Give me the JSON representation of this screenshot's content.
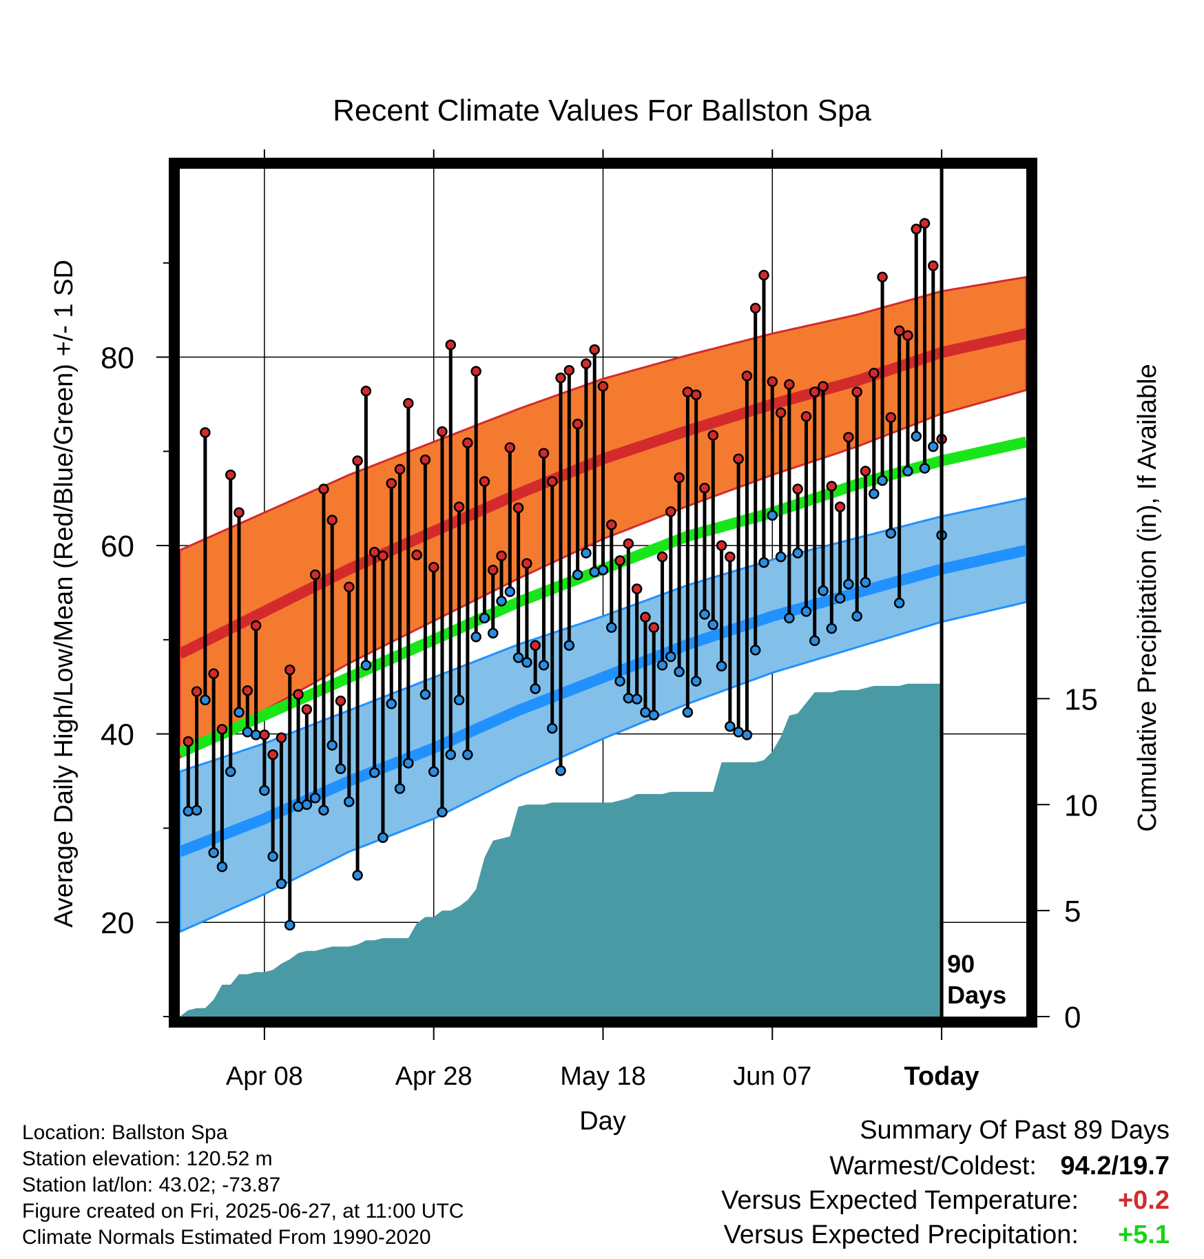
{
  "chart_data": {
    "type": "line",
    "title": "Recent Climate Values For Ballston Spa",
    "xlabel": "Day",
    "ylabel": "Average Daily High/Low/Mean (Red/Blue/Green) +/- 1 SD",
    "y2label": "Cumulative Precipitation (in), If Available",
    "x_range_days": [
      -90,
      10
    ],
    "ylim": [
      10,
      100
    ],
    "y_ticks": [
      "20",
      "40",
      "60",
      "80"
    ],
    "y2lim": [
      0,
      40
    ],
    "y2_ticks": [
      "0",
      "5",
      "10",
      "15"
    ],
    "x_tick_days": [
      -80,
      -60,
      -40,
      -20,
      0
    ],
    "x_tick_labels": [
      "Apr 08",
      "Apr 28",
      "May 18",
      "Jun 07",
      "Today"
    ],
    "today_marker": "90\nDays",
    "series_colors": {
      "high_band": "#f47a30",
      "high_mean": "#d32b2b",
      "low_band": "#82c0ea",
      "low_mean": "#2191ff",
      "mean": "#19e619",
      "precip": "#4a9aa5",
      "high_dot": "#d32b2b",
      "low_dot": "#2b8de0"
    },
    "normals": {
      "days": [
        -90,
        -80,
        -70,
        -60,
        -50,
        -40,
        -30,
        -20,
        -10,
        0,
        10
      ],
      "high_mean": [
        48.5,
        53.0,
        57.5,
        61.5,
        65.5,
        69.2,
        72.2,
        75.0,
        77.5,
        80.5,
        82.5
      ],
      "high_sd": [
        11.0,
        10.5,
        10.0,
        9.5,
        9.0,
        8.5,
        8.0,
        7.5,
        7.0,
        6.5,
        6.0
      ],
      "low_mean": [
        27.5,
        31.0,
        35.0,
        38.5,
        42.5,
        46.0,
        49.5,
        52.5,
        55.0,
        57.5,
        59.5
      ],
      "low_sd": [
        8.5,
        8.0,
        7.5,
        7.5,
        7.0,
        6.5,
        6.3,
        6.0,
        5.8,
        5.6,
        5.5
      ],
      "mean": [
        38.0,
        42.0,
        46.0,
        50.0,
        54.0,
        57.5,
        61.0,
        63.5,
        66.5,
        69.0,
        71.0
      ]
    },
    "observed": {
      "start_day": -89,
      "high": [
        39.2,
        44.5,
        72.0,
        46.4,
        40.5,
        67.5,
        63.5,
        44.6,
        51.5,
        39.9,
        37.8,
        39.6,
        46.8,
        44.2,
        42.6,
        56.9,
        66.0,
        62.7,
        43.5,
        55.6,
        69.0,
        76.4,
        59.3,
        58.9,
        66.6,
        68.1,
        75.1,
        59.0,
        69.1,
        57.7,
        72.1,
        81.3,
        64.1,
        70.9,
        78.5,
        66.8,
        57.4,
        58.9,
        70.4,
        64.0,
        58.1,
        49.4,
        69.8,
        66.8,
        77.8,
        78.6,
        72.9,
        79.3,
        80.8,
        76.9,
        62.2,
        58.4,
        60.2,
        55.4,
        52.4,
        51.3,
        58.8,
        63.6,
        67.2,
        76.3,
        76.0,
        66.1,
        71.7,
        60.0,
        58.8,
        69.2,
        78.0,
        85.2,
        88.7,
        77.4,
        74.1,
        77.1,
        66.0,
        73.7,
        76.3,
        76.9,
        66.3,
        64.1,
        71.5,
        76.3,
        67.9,
        78.3,
        88.5,
        73.6,
        82.8,
        82.3,
        93.6,
        94.2,
        89.7,
        71.3
      ],
      "low": [
        31.8,
        31.9,
        43.6,
        27.4,
        25.9,
        36.0,
        42.3,
        40.2,
        39.9,
        34.0,
        27.0,
        24.1,
        19.7,
        32.3,
        32.5,
        33.2,
        31.9,
        38.8,
        36.3,
        32.8,
        25.0,
        47.3,
        35.9,
        29.0,
        43.2,
        34.2,
        36.9,
        59.0,
        44.2,
        36.0,
        31.7,
        37.8,
        43.6,
        37.8,
        50.3,
        52.3,
        50.7,
        54.1,
        55.1,
        48.1,
        47.6,
        44.8,
        47.3,
        40.6,
        36.1,
        49.4,
        56.9,
        59.2,
        57.2,
        57.4,
        51.3,
        45.6,
        43.8,
        43.7,
        42.3,
        42.0,
        47.3,
        48.2,
        46.6,
        42.3,
        45.6,
        52.7,
        51.6,
        47.2,
        40.8,
        40.2,
        39.9,
        48.9,
        58.2,
        63.2,
        58.8,
        52.3,
        59.2,
        53.0,
        49.9,
        55.2,
        51.2,
        54.4,
        55.9,
        52.5,
        56.1,
        65.5,
        66.9,
        61.3,
        53.9,
        67.9,
        71.6,
        68.2,
        70.5,
        61.1
      ]
    },
    "precip_cumulative": {
      "start_day": -90,
      "values": [
        0.0,
        0.3,
        0.4,
        0.4,
        0.8,
        1.5,
        1.5,
        2.0,
        2.0,
        2.1,
        2.1,
        2.2,
        2.5,
        2.7,
        3.0,
        3.1,
        3.1,
        3.2,
        3.3,
        3.3,
        3.3,
        3.4,
        3.6,
        3.6,
        3.7,
        3.7,
        3.7,
        3.7,
        4.4,
        4.7,
        4.7,
        5.0,
        5.0,
        5.2,
        5.5,
        6.0,
        7.5,
        8.3,
        8.4,
        8.5,
        9.9,
        10.0,
        10.0,
        10.0,
        10.1,
        10.1,
        10.1,
        10.1,
        10.1,
        10.1,
        10.1,
        10.1,
        10.2,
        10.3,
        10.5,
        10.5,
        10.5,
        10.5,
        10.6,
        10.6,
        10.6,
        10.6,
        10.6,
        10.6,
        12.0,
        12.0,
        12.0,
        12.0,
        12.0,
        12.1,
        12.5,
        13.2,
        14.2,
        14.3,
        14.8,
        15.3,
        15.3,
        15.3,
        15.4,
        15.4,
        15.4,
        15.5,
        15.6,
        15.6,
        15.6,
        15.6,
        15.7,
        15.7,
        15.7,
        15.7,
        15.7
      ]
    }
  },
  "info": {
    "location": "Location: Ballston Spa",
    "elevation": "Station elevation: 120.52 m",
    "latlon": "Station lat/lon: 43.02; -73.87",
    "created": "Figure created on Fri, 2025-06-27, at 11:00 UTC",
    "normals": "Climate Normals Estimated From 1990-2020"
  },
  "summary": {
    "heading": "Summary Of Past 89 Days",
    "warmest_coldest_label": "Warmest/Coldest:",
    "warmest_coldest_value": "94.2/19.7",
    "temp_label": "Versus Expected Temperature:",
    "temp_value": "+0.2",
    "temp_color": "#d32b2b",
    "precip_label": "Versus Expected Precipitation:",
    "precip_value": "+5.1",
    "precip_color": "#19d319"
  }
}
